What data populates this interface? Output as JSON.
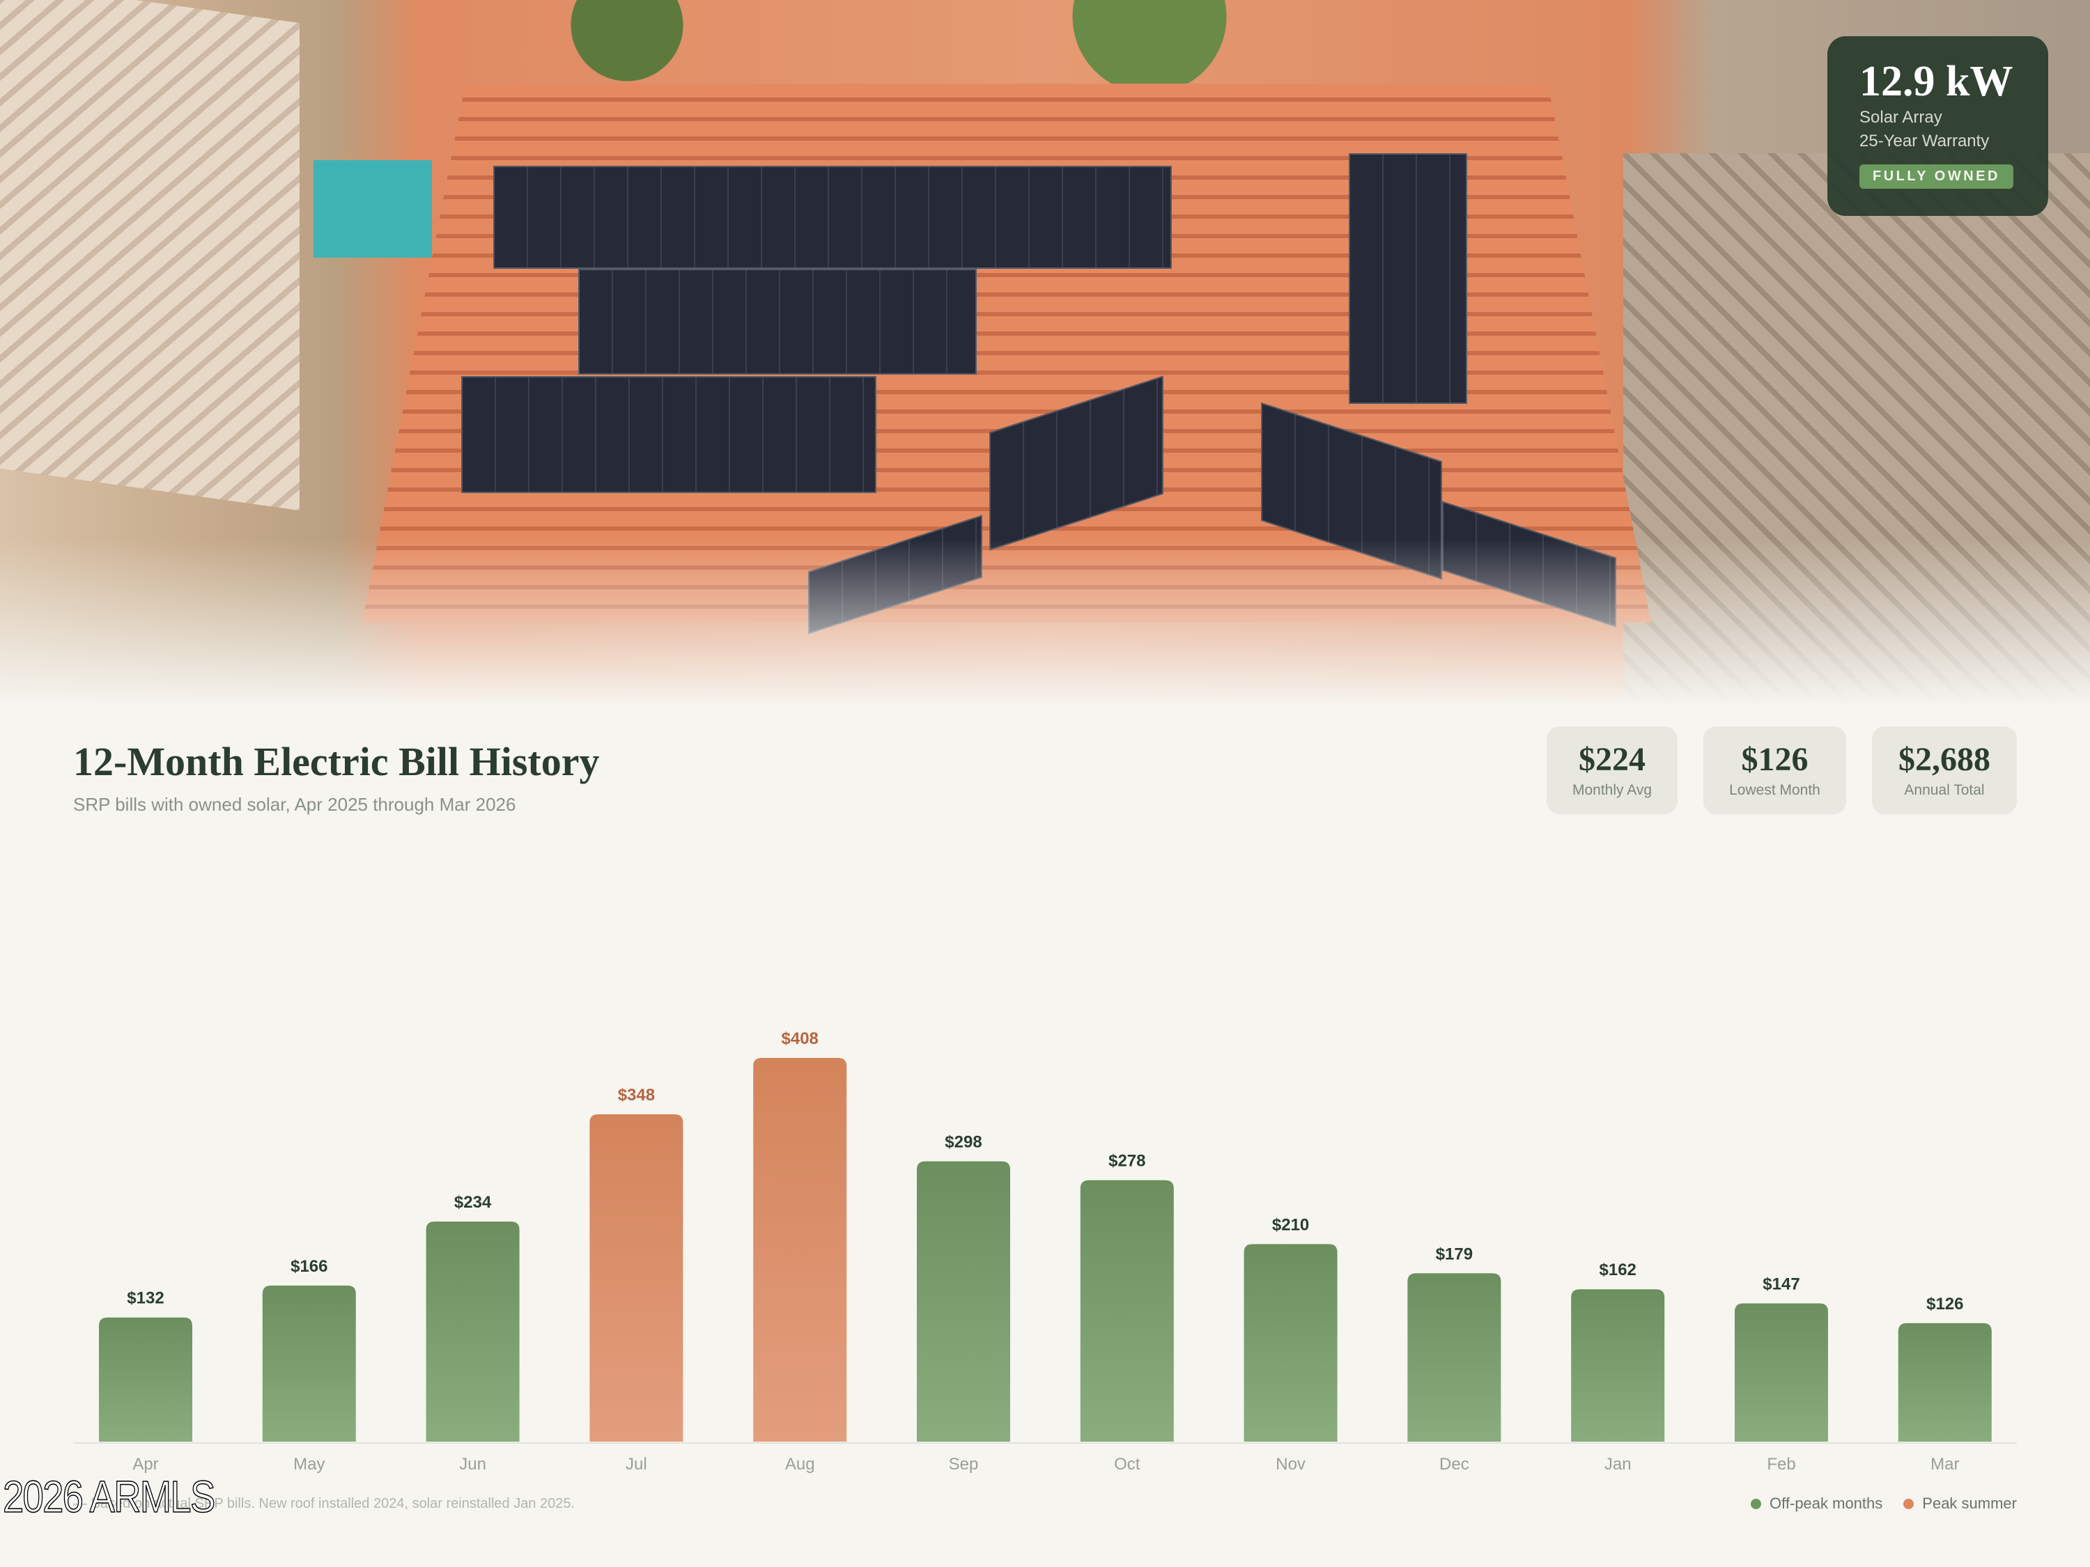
{
  "badge": {
    "power": "12.9 kW",
    "line1": "Solar Array",
    "line2": "25-Year Warranty",
    "pill": "FULLY OWNED"
  },
  "header": {
    "title": "12-Month Electric Bill History",
    "subtitle": "SRP bills with owned solar, Apr 2025 through Mar 2026"
  },
  "stats": [
    {
      "value": "$224",
      "label": "Monthly Avg"
    },
    {
      "value": "$126",
      "label": "Lowest Month"
    },
    {
      "value": "$2,688",
      "label": "Annual Total"
    }
  ],
  "chart_data": {
    "type": "bar",
    "categories": [
      "Apr",
      "May",
      "Jun",
      "Jul",
      "Aug",
      "Sep",
      "Oct",
      "Nov",
      "Dec",
      "Jan",
      "Feb",
      "Mar"
    ],
    "values": [
      132,
      166,
      234,
      348,
      408,
      298,
      278,
      210,
      179,
      162,
      147,
      126
    ],
    "labels": [
      "$132",
      "$166",
      "$234",
      "$348",
      "$408",
      "$298",
      "$278",
      "$210",
      "$179",
      "$162",
      "$147",
      "$126"
    ],
    "peak": [
      false,
      false,
      false,
      true,
      true,
      false,
      false,
      false,
      false,
      false,
      false,
      false
    ],
    "ylim": [
      0,
      408
    ],
    "grid": false,
    "legend_placement": "bottom-right",
    "legend": [
      {
        "name": "Off-peak months",
        "color": "#6a9a5e"
      },
      {
        "name": "Peak summer",
        "color": "#dd875d"
      }
    ],
    "colors": {
      "offpeak_top": "#6b8f5e",
      "offpeak_bottom": "#8aad7e",
      "peak_top": "#d4845a",
      "peak_bottom": "#e39e7e",
      "offpeak_label": "#2b3d2e",
      "peak_label": "#b5653e"
    }
  },
  "footnote": "— Based on actual SRP bills. New roof installed 2024, solar reinstalled Jan 2025.",
  "watermark": "2026 ARMLS"
}
